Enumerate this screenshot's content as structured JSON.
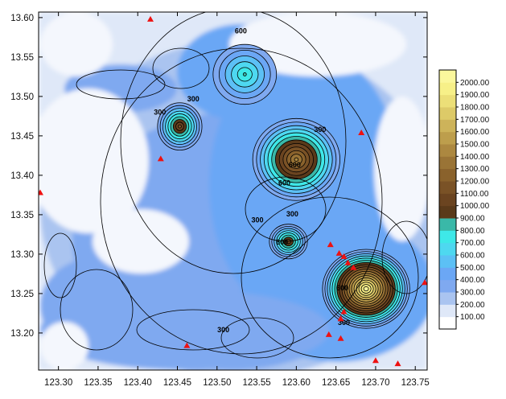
{
  "chart_data": {
    "type": "heatmap",
    "subtype": "contour-map",
    "xlim": [
      123.275,
      123.765
    ],
    "ylim": [
      13.153,
      13.607
    ],
    "x_ticks": [
      "123.30",
      "123.35",
      "123.40",
      "123.45",
      "123.50",
      "123.55",
      "123.60",
      "123.65",
      "123.70",
      "123.75"
    ],
    "x_tick_values": [
      123.3,
      123.35,
      123.4,
      123.45,
      123.5,
      123.55,
      123.6,
      123.65,
      123.7,
      123.75
    ],
    "y_ticks": [
      "13.20",
      "13.25",
      "13.30",
      "13.35",
      "13.40",
      "13.45",
      "13.50",
      "13.55",
      "13.60"
    ],
    "y_tick_values": [
      13.2,
      13.25,
      13.3,
      13.35,
      13.4,
      13.45,
      13.5,
      13.55,
      13.6
    ],
    "colorbar": {
      "levels": [
        "100.00",
        "200.00",
        "300.00",
        "400.00",
        "500.00",
        "600.00",
        "700.00",
        "800.00",
        "900.00",
        "1000.00",
        "1100.00",
        "1200.00",
        "1300.00",
        "1400.00",
        "1500.00",
        "1600.00",
        "1700.00",
        "1800.00",
        "1900.00",
        "2000.00"
      ],
      "colors": [
        "#ffffff",
        "#dfe8f8",
        "#aac4f0",
        "#7fa9f0",
        "#6ba7f5",
        "#5cc0f5",
        "#4ed8f0",
        "#3ee8e8",
        "#3ab8a8",
        "#5a3a1a",
        "#6b4420",
        "#7a5226",
        "#8a622c",
        "#9a7436",
        "#ac8840",
        "#bd9e4c",
        "#cdb35a",
        "#ddca68",
        "#ecdf78",
        "#f7f088",
        "#fbf79c"
      ]
    },
    "contour_labels": [
      {
        "text": "300",
        "lon": 123.428,
        "lat": 13.477
      },
      {
        "text": "300",
        "lon": 123.47,
        "lat": 13.494
      },
      {
        "text": "600",
        "lon": 123.53,
        "lat": 13.58
      },
      {
        "text": "300",
        "lon": 123.63,
        "lat": 13.455
      },
      {
        "text": "600",
        "lon": 123.598,
        "lat": 13.41
      },
      {
        "text": "600",
        "lon": 123.585,
        "lat": 13.387
      },
      {
        "text": "300",
        "lon": 123.595,
        "lat": 13.348
      },
      {
        "text": "300",
        "lon": 123.551,
        "lat": 13.34
      },
      {
        "text": "600",
        "lon": 123.582,
        "lat": 13.312
      },
      {
        "text": "600",
        "lon": 123.658,
        "lat": 13.254
      },
      {
        "text": "300",
        "lon": 123.66,
        "lat": 13.21
      },
      {
        "text": "300",
        "lon": 123.508,
        "lat": 13.201
      }
    ],
    "peaks": [
      {
        "lon": 123.453,
        "lat": 13.462,
        "height": 1050,
        "rx": 0.028,
        "ry": 0.03
      },
      {
        "lon": 123.6,
        "lat": 13.42,
        "height": 1350,
        "rx": 0.055,
        "ry": 0.052
      },
      {
        "lon": 123.59,
        "lat": 13.316,
        "height": 1000,
        "rx": 0.024,
        "ry": 0.022
      },
      {
        "lon": 123.688,
        "lat": 13.256,
        "height": 2000,
        "rx": 0.055,
        "ry": 0.05
      },
      {
        "lon": 123.535,
        "lat": 13.528,
        "height": 720,
        "rx": 0.04,
        "ry": 0.038
      }
    ],
    "markers": [
      {
        "lon": 123.416,
        "lat": 13.598
      },
      {
        "lon": 123.429,
        "lat": 13.421
      },
      {
        "lon": 123.277,
        "lat": 13.378
      },
      {
        "lon": 123.682,
        "lat": 13.454
      },
      {
        "lon": 123.643,
        "lat": 13.312
      },
      {
        "lon": 123.654,
        "lat": 13.301
      },
      {
        "lon": 123.66,
        "lat": 13.297
      },
      {
        "lon": 123.665,
        "lat": 13.289
      },
      {
        "lon": 123.672,
        "lat": 13.283
      },
      {
        "lon": 123.66,
        "lat": 13.227
      },
      {
        "lon": 123.656,
        "lat": 13.218
      },
      {
        "lon": 123.641,
        "lat": 13.198
      },
      {
        "lon": 123.656,
        "lat": 13.193
      },
      {
        "lon": 123.462,
        "lat": 13.184
      },
      {
        "lon": 123.7,
        "lat": 13.165
      },
      {
        "lon": 123.728,
        "lat": 13.161
      },
      {
        "lon": 123.762,
        "lat": 13.264
      }
    ],
    "grid": false,
    "legend_position": "right"
  }
}
